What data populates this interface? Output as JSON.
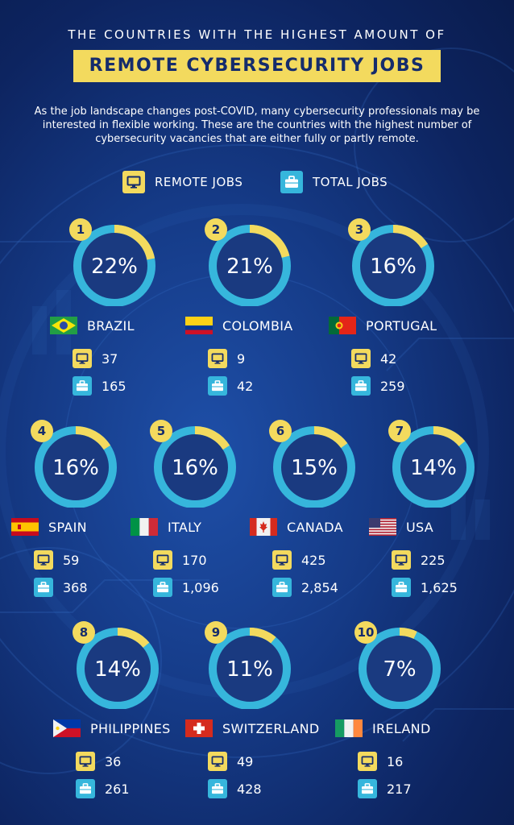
{
  "header": {
    "subtitle": "THE COUNTRIES WITH THE HIGHEST AMOUNT OF",
    "title": "REMOTE CYBERSECURITY JOBS",
    "intro": "As the job landscape changes post-COVID, many cybersecurity professionals may be interested in flexible working. These are the countries with the highest number of cybersecurity vacancies that are either fully or partly remote."
  },
  "legend": {
    "remote_label": "REMOTE JOBS",
    "total_label": "TOTAL JOBS"
  },
  "colors": {
    "remote": "#f3da5e",
    "total": "#36b6dc",
    "donut_track": "#36b6dc",
    "donut_center": "#1a3a80",
    "background": "#153a86"
  },
  "icons": {
    "remote": "monitor-icon",
    "total": "briefcase-icon"
  },
  "chart_data": {
    "type": "pie",
    "title": "THE COUNTRIES WITH THE HIGHEST AMOUNT OF REMOTE CYBERSECURITY JOBS",
    "countries": [
      {
        "rank": "1",
        "name": "BRAZIL",
        "percent_label": "22%",
        "percent": 22,
        "remote": "37",
        "total": "165"
      },
      {
        "rank": "2",
        "name": "COLOMBIA",
        "percent_label": "21%",
        "percent": 21,
        "remote": "9",
        "total": "42"
      },
      {
        "rank": "3",
        "name": "PORTUGAL",
        "percent_label": "16%",
        "percent": 16,
        "remote": "42",
        "total": "259"
      },
      {
        "rank": "4",
        "name": "SPAIN",
        "percent_label": "16%",
        "percent": 16,
        "remote": "59",
        "total": "368"
      },
      {
        "rank": "5",
        "name": "ITALY",
        "percent_label": "16%",
        "percent": 16,
        "remote": "170",
        "total": "1,096"
      },
      {
        "rank": "6",
        "name": "CANADA",
        "percent_label": "15%",
        "percent": 15,
        "remote": "425",
        "total": "2,854"
      },
      {
        "rank": "7",
        "name": "USA",
        "percent_label": "14%",
        "percent": 14,
        "remote": "225",
        "total": "1,625"
      },
      {
        "rank": "8",
        "name": "PHILIPPINES",
        "percent_label": "14%",
        "percent": 14,
        "remote": "36",
        "total": "261"
      },
      {
        "rank": "9",
        "name": "SWITZERLAND",
        "percent_label": "11%",
        "percent": 11,
        "remote": "49",
        "total": "428"
      },
      {
        "rank": "10",
        "name": "IRELAND",
        "percent_label": "7%",
        "percent": 7,
        "remote": "16",
        "total": "217"
      }
    ]
  }
}
